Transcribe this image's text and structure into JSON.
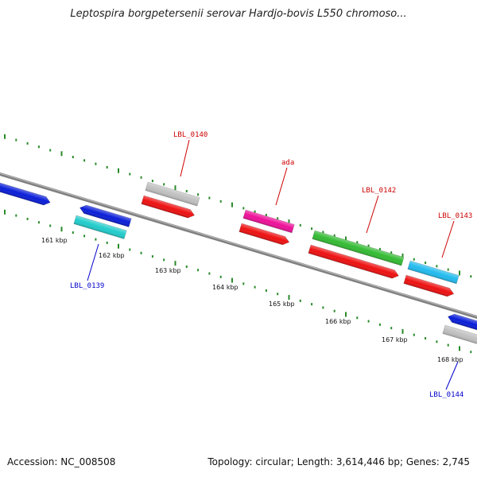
{
  "title": "Leptospira borgpetersenii serovar Hardjo-bovis L550 chromoso...",
  "footer": {
    "accession": "Accession: NC_008508",
    "topology": "Topology: circular; Length: 3,614,446 bp; Genes: 2,745"
  },
  "ticks": [
    "161 kbp",
    "162 kbp",
    "163 kbp",
    "164 kbp",
    "165 kbp",
    "166 kbp",
    "167 kbp",
    "168 kbp"
  ],
  "genes": [
    {
      "name": "",
      "color": "#0a1ed8"
    },
    {
      "name": "LBL_0139",
      "color": "#0a1ed8"
    },
    {
      "name": "",
      "color": "#22cccc"
    },
    {
      "name": "LBL_0140",
      "color": "#c0c0c0"
    },
    {
      "name": "",
      "color": "#ee1111"
    },
    {
      "name": "ada",
      "color": "#ee1199"
    },
    {
      "name": "",
      "color": "#ee1111"
    },
    {
      "name": "LBL_0142",
      "color": "#33bb33"
    },
    {
      "name": "",
      "color": "#ee1111"
    },
    {
      "name": "LBL_0143",
      "color": "#22bbee"
    },
    {
      "name": "",
      "color": "#ee1111"
    },
    {
      "name": "",
      "color": "#0a1ed8"
    },
    {
      "name": "LBL_0144",
      "color": "#c0c0c0"
    }
  ],
  "colors": {
    "forward_label": "#cc0000",
    "reverse_label": "#0000cc",
    "backbone": "#808080",
    "tick": "#2a8a2a"
  }
}
